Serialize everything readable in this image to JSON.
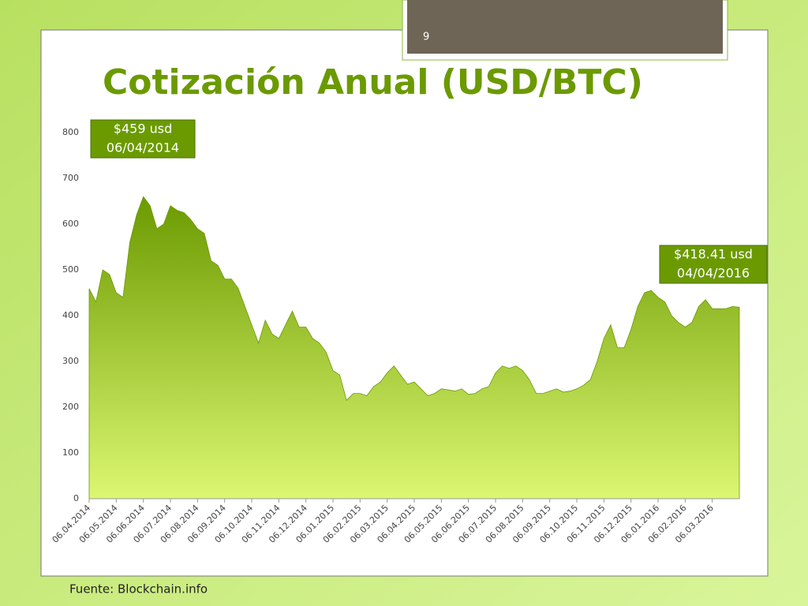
{
  "slide_number": "9",
  "source": "Fuente: Blockchain.info",
  "chart_data": {
    "type": "area",
    "title": "Cotización Anual (USD/BTC)",
    "categories": [
      "06.04.2014",
      null,
      null,
      null,
      "06.05.2014",
      null,
      null,
      null,
      "06.06.2014",
      null,
      null,
      null,
      "06.07.2014",
      null,
      null,
      null,
      "06.08.2014",
      null,
      null,
      null,
      "06.09.2014",
      null,
      null,
      null,
      "06.10.2014",
      null,
      null,
      null,
      "06.11.2014",
      null,
      null,
      null,
      "06.12.2014",
      null,
      null,
      null,
      "06.01.2015",
      null,
      null,
      null,
      "06.02.2015",
      null,
      null,
      null,
      "06.03.2015",
      null,
      null,
      null,
      "06.04.2015",
      null,
      null,
      null,
      "06.05.2015",
      null,
      null,
      null,
      "06.06.2015",
      null,
      null,
      null,
      "06.07.2015",
      null,
      null,
      null,
      "06.08.2015",
      null,
      null,
      null,
      "06.09.2015",
      null,
      null,
      null,
      "06.10.2015",
      null,
      null,
      null,
      "06.11.2015",
      null,
      null,
      null,
      "06.12.2015",
      null,
      null,
      null,
      "06.01.2016",
      null,
      null,
      null,
      "06.02.2016",
      null,
      null,
      null,
      "06.03.2016",
      null,
      null,
      null,
      null
    ],
    "values": [
      459,
      430,
      500,
      490,
      450,
      440,
      560,
      620,
      660,
      640,
      590,
      600,
      640,
      630,
      625,
      610,
      590,
      580,
      520,
      510,
      480,
      480,
      460,
      420,
      380,
      340,
      390,
      360,
      350,
      380,
      410,
      375,
      375,
      350,
      340,
      320,
      280,
      270,
      215,
      230,
      230,
      225,
      245,
      255,
      275,
      290,
      270,
      250,
      255,
      240,
      225,
      230,
      240,
      238,
      235,
      240,
      228,
      230,
      240,
      245,
      275,
      290,
      285,
      290,
      280,
      260,
      230,
      230,
      235,
      240,
      233,
      235,
      240,
      248,
      260,
      300,
      350,
      380,
      330,
      330,
      370,
      420,
      450,
      455,
      440,
      430,
      400,
      385,
      375,
      385,
      420,
      435,
      415,
      415,
      415,
      420,
      418.41
    ],
    "ylim": [
      0,
      800
    ],
    "yticks": [
      0,
      100,
      200,
      300,
      400,
      500,
      600,
      700,
      800
    ],
    "color": "#6b9a00",
    "annotations": [
      [
        "$459 usd",
        "06/04/2014"
      ],
      [
        "$418.41 usd",
        "04/04/2016"
      ]
    ]
  }
}
